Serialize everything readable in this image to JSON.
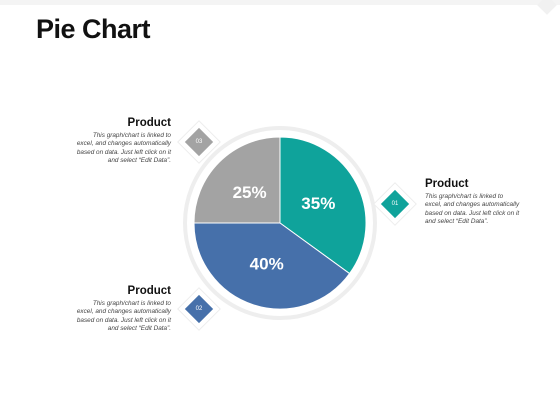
{
  "header": {
    "title": "Pie Chart"
  },
  "callouts": [
    {
      "id": "03",
      "title": "Product",
      "lines": [
        "This graph/chart is linked to",
        "excel, and changes automatically",
        "based on data. Just left click on it",
        "and select “Edit Data”."
      ]
    },
    {
      "id": "01",
      "title": "Product",
      "lines": [
        "This graph/chart is linked to",
        "excel, and changes automatically",
        "based on data. Just left click on it",
        "and select “Edit Data”."
      ]
    },
    {
      "id": "02",
      "title": "Product",
      "lines": [
        "This graph/chart is linked to",
        "excel, and changes automatically",
        "based on data. Just left click on it",
        "and select “Edit Data”."
      ]
    }
  ],
  "colors": {
    "teal": "#0fa39b",
    "blue": "#4670aa",
    "gray": "#a3a3a3",
    "ring": "#eeeeee"
  },
  "chart_data": {
    "type": "pie",
    "slices": [
      {
        "id": "01",
        "value": 35,
        "label": "35%",
        "color": "#0fa39b"
      },
      {
        "id": "02",
        "value": 40,
        "label": "40%",
        "color": "#4670aa"
      },
      {
        "id": "03",
        "value": 25,
        "label": "25%",
        "color": "#a3a3a3"
      }
    ],
    "start": "12 o'clock",
    "direction": "clockwise",
    "legend": "none"
  }
}
